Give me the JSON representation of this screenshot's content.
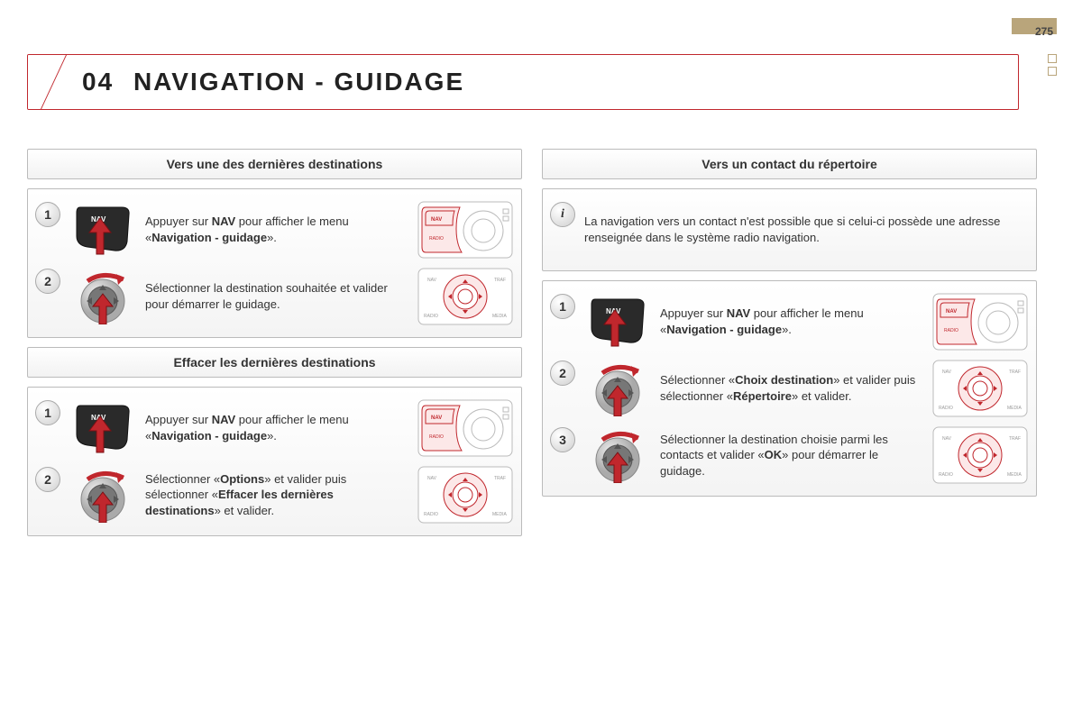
{
  "page_number": "275",
  "title_number": "04",
  "title_text": "NAVIGATION - GUIDAGE",
  "colors": {
    "accent_red": "#c0272d",
    "tan": "#b9a57b",
    "border_grey": "#bbbbbb",
    "text": "#333333"
  },
  "left": {
    "section1_header": "Vers une des dernières destinations",
    "section1_steps": [
      {
        "num": "1",
        "icon": "nav",
        "diagram": "panel",
        "html": "Appuyer sur <span class='strong'>NAV</span> pour afficher le menu «<span class='strong'>Navigation - guidage</span>»."
      },
      {
        "num": "2",
        "icon": "dial",
        "diagram": "dial",
        "html": "Sélectionner la destination souhaitée et valider pour démarrer le guidage."
      }
    ],
    "section2_header": "Effacer les dernières destinations",
    "section2_steps": [
      {
        "num": "1",
        "icon": "nav",
        "diagram": "panel",
        "html": "Appuyer sur <span class='strong'>NAV</span> pour afficher le menu «<span class='strong'>Navigation - guidage</span>»."
      },
      {
        "num": "2",
        "icon": "dial",
        "diagram": "dial",
        "html": "Sélectionner «<span class='strong'>Options</span>» et valider puis sélectionner «<span class='strong'>Effacer les dernières destinations</span>» et valider."
      }
    ]
  },
  "right": {
    "header": "Vers un contact du répertoire",
    "info_text": "La navigation vers un contact n'est possible que si celui-ci possède une adresse renseignée dans le système radio navigation.",
    "steps": [
      {
        "num": "1",
        "icon": "nav",
        "diagram": "panel",
        "html": "Appuyer sur <span class='strong'>NAV</span> pour afficher le menu «<span class='strong'>Navigation - guidage</span>»."
      },
      {
        "num": "2",
        "icon": "dial",
        "diagram": "dial",
        "html": "Sélectionner «<span class='strong'>Choix destination</span>» et valider puis sélectionner «<span class='strong'>Répertoire</span>» et valider."
      },
      {
        "num": "3",
        "icon": "dial",
        "diagram": "dial",
        "html": "Sélectionner la destination choisie parmi les contacts et valider «<span class='strong'>OK</span>» pour démarrer le guidage."
      }
    ]
  },
  "icons": {
    "nav_label": "NAV",
    "panel_nav_label": "NAV",
    "panel_radio_label": "RADIO",
    "dial_labels": [
      "NAV",
      "TRAF",
      "RADIO",
      "MEDIA"
    ]
  }
}
